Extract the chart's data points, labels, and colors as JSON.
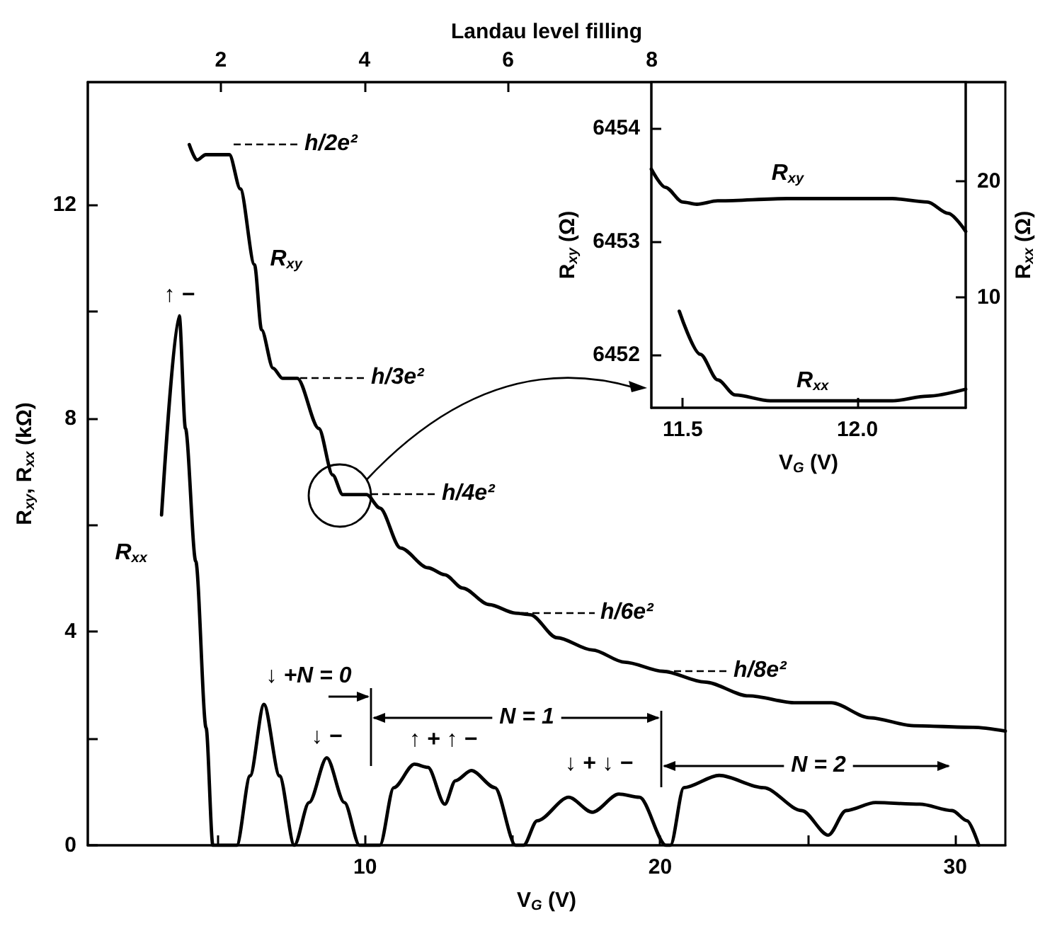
{
  "chart_data": [
    {
      "type": "line",
      "xlabel": "V$_{G}$ (V)",
      "ylabel": "R$_{xy}$, R$_{xx}$ (kΩ)",
      "x2label": "Landau level filling",
      "xlim": [
        0.6,
        31.7
      ],
      "xticks": [
        {
          "value": 5,
          "label": null
        },
        10,
        {
          "value": 15,
          "label": null
        },
        20,
        {
          "value": 25,
          "label": null
        },
        30
      ],
      "ylim": [
        0,
        14.3
      ],
      "yticks": [
        0,
        {
          "value": 2,
          "label": null
        },
        4,
        {
          "value": 6,
          "label": null
        },
        8,
        {
          "value": 10,
          "label": null
        },
        12
      ],
      "x2lim": [
        0.15,
        12.92
      ],
      "x2ticks": [
        2,
        4,
        6,
        8
      ],
      "series": [
        {
          "name": "R$_{xy}$",
          "color": "#000000",
          "x": [
            4.04,
            4.3,
            4.6,
            5.4,
            5.77,
            6.25,
            6.49,
            6.88,
            7.2,
            7.7,
            8.43,
            8.9,
            9.24,
            10.05,
            10.5,
            11.2,
            12.13,
            12.7,
            13.3,
            14.2,
            15.1,
            15.6,
            16.5,
            17.7,
            18.8,
            20.1,
            21.5,
            23.0,
            24.6,
            25.8,
            27.1,
            28.6,
            30.6,
            31.7
          ],
          "values": [
            13.13,
            12.84,
            12.94,
            12.94,
            12.3,
            10.88,
            9.66,
            8.94,
            8.75,
            8.75,
            7.81,
            6.94,
            6.57,
            6.57,
            6.32,
            5.57,
            5.2,
            5.07,
            4.82,
            4.51,
            4.35,
            4.32,
            3.89,
            3.66,
            3.43,
            3.26,
            3.06,
            2.8,
            2.67,
            2.67,
            2.39,
            2.24,
            2.21,
            2.14
          ]
        },
        {
          "name": "R$_{xx}$",
          "color": "#000000",
          "x": [
            3.1,
            3.7,
            3.91,
            4.26,
            4.61,
            4.84,
            5.65,
            6.1,
            6.57,
            7.1,
            7.6,
            8.1,
            8.7,
            9.3,
            9.81,
            10.5,
            10.97,
            11.67,
            12.13,
            12.7,
            13.06,
            13.6,
            14.4,
            15.1,
            15.37,
            15.83,
            16.9,
            17.7,
            18.6,
            19.3,
            20.2,
            20.35,
            20.8,
            22.0,
            23.5,
            24.8,
            25.7,
            26.3,
            27.3,
            28.8,
            29.9,
            30.4,
            30.8
          ],
          "values": [
            6.19,
            9.92,
            7.81,
            5.32,
            2.2,
            0,
            0,
            1.3,
            2.64,
            1.3,
            0,
            0.8,
            1.64,
            0.8,
            0,
            0,
            1.08,
            1.52,
            1.46,
            0.77,
            1.21,
            1.4,
            1.08,
            0,
            0,
            0.46,
            0.9,
            0.62,
            0.96,
            0.9,
            0,
            0,
            1.08,
            1.31,
            1.08,
            0.65,
            0.19,
            0.65,
            0.8,
            0.77,
            0.65,
            0.46,
            0
          ]
        }
      ],
      "annotations": [
        "h/2e²",
        "h/3e²",
        "h/4e²",
        "h/6e²",
        "h/8e²",
        {
          "text": "↑ −",
          "x": 3.7,
          "y": 9.92
        },
        {
          "text": "↓ −",
          "x": 8.7,
          "y": 1.64
        },
        "↑ + ↑ −",
        "↓ + ↓ −",
        "↓ +N = 0",
        "N = 1",
        "N = 2"
      ]
    },
    {
      "type": "line",
      "xlabel": "V$_{G}$ (V)",
      "ylabel": "R$_{xy}$ (Ω)",
      "y2label": "R$_{xx}$ (Ω)",
      "xlim": [
        11.41,
        12.31
      ],
      "xticks": [
        11.5,
        {
          "value": 12,
          "label": "12.0"
        }
      ],
      "ylim": [
        6451.53,
        6454.41
      ],
      "yticks": [
        6452,
        6453,
        6454
      ],
      "y2lim": [
        0.5,
        28.5
      ],
      "y2ticks": [
        10,
        20
      ],
      "series": [
        {
          "name": "R$_{xy}$",
          "color": "#000000",
          "x": [
            11.41,
            11.45,
            11.5,
            11.54,
            11.6,
            11.8,
            12.0,
            12.1,
            12.2,
            12.26,
            12.31
          ],
          "values": [
            6453.64,
            6453.48,
            6453.35,
            6453.33,
            6453.36,
            6453.38,
            6453.38,
            6453.38,
            6453.35,
            6453.25,
            6453.09
          ]
        },
        {
          "name": "R$_{xx}$",
          "color": "#000000",
          "axis": "y2",
          "x": [
            11.49,
            11.55,
            11.6,
            11.65,
            11.75,
            12.1,
            12.2,
            12.31
          ],
          "values": [
            8.8,
            5.1,
            2.9,
            1.6,
            1.1,
            1.1,
            1.5,
            2.1
          ]
        }
      ]
    }
  ]
}
